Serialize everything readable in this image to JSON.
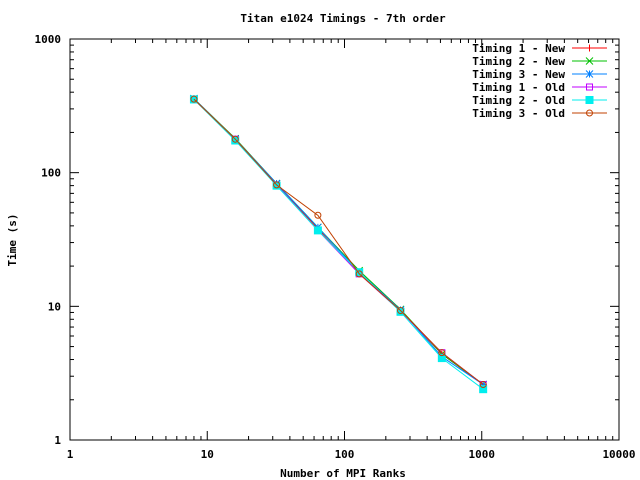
{
  "chart_data": {
    "type": "line",
    "title": "Titan e1024 Timings - 7th order",
    "xlabel": "Number of MPI Ranks",
    "ylabel": "Time (s)",
    "xscale": "log",
    "yscale": "log",
    "xlim": [
      1,
      10000
    ],
    "ylim": [
      1,
      1000
    ],
    "xticks": [
      1,
      10,
      100,
      1000,
      10000
    ],
    "yticks": [
      1,
      10,
      100,
      1000
    ],
    "xtick_labels": [
      "1",
      "10",
      "100",
      "1000",
      "10000"
    ],
    "ytick_labels": [
      "1",
      "10",
      "100",
      "1000"
    ],
    "grid": false,
    "legend_position": "top-right",
    "x": [
      8,
      16,
      32,
      64,
      128,
      256,
      512,
      1024
    ],
    "series": [
      {
        "name": "Timing 1 - New",
        "color": "#ff0000",
        "marker": "plus",
        "values": [
          355,
          178,
          82,
          38,
          17.5,
          9.3,
          4.4,
          2.6
        ]
      },
      {
        "name": "Timing 2 - New",
        "color": "#00c000",
        "marker": "cross",
        "values": [
          358,
          180,
          83,
          39,
          18.5,
          9.5,
          4.4,
          2.6
        ]
      },
      {
        "name": "Timing 3 - New",
        "color": "#0080ff",
        "marker": "star",
        "values": [
          358,
          178,
          83,
          39,
          18,
          9.4,
          4.2,
          2.6
        ]
      },
      {
        "name": "Timing 1 - Old",
        "color": "#c000ff",
        "marker": "open-square",
        "values": [
          354,
          178,
          81,
          37,
          17.5,
          9.2,
          4.5,
          2.6
        ]
      },
      {
        "name": "Timing 2 - Old",
        "color": "#00eeee",
        "marker": "filled-square",
        "values": [
          353,
          174,
          80,
          37,
          18,
          9.1,
          4.1,
          2.4
        ]
      },
      {
        "name": "Timing 3 - Old",
        "color": "#c04000",
        "marker": "open-circle",
        "values": [
          355,
          178,
          81,
          48,
          17.5,
          9.3,
          4.5,
          2.6
        ]
      }
    ]
  }
}
